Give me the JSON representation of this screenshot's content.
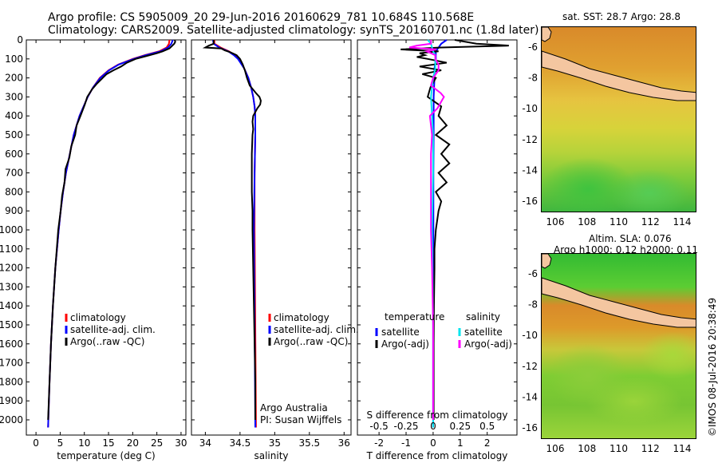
{
  "header": {
    "title_line1": "Argo profile: CS 5905009_20 29-Jun-2016 20160629_781 10.684S 110.568E",
    "title_line2": "Climatology: CARS2009. Satellite-adjusted climatology: synTS_20160701.nc (1.8d later)"
  },
  "depth_axis": {
    "ticks": [
      0,
      100,
      200,
      300,
      400,
      500,
      600,
      700,
      800,
      900,
      1000,
      1100,
      1200,
      1300,
      1400,
      1500,
      1600,
      1700,
      1800,
      1900,
      2000
    ]
  },
  "colors": {
    "climatology": "#ff0000",
    "satellite": "#0000ff",
    "argo": "#000000",
    "salinity_satellite": "#00e5ee",
    "salinity_argo": "#ff00ff"
  },
  "chart_data": [
    {
      "type": "line",
      "title": "Temperature profile",
      "xlabel": "temperature (deg C)",
      "ylabel": "depth",
      "xlim": [
        -2,
        31
      ],
      "ylim": [
        2080,
        0
      ],
      "xticks": [
        0,
        5,
        10,
        15,
        20,
        25,
        30
      ],
      "legend": [
        "climatology",
        "satellite-adj. clim.",
        "Argo(..raw -QC)"
      ],
      "series": [
        {
          "name": "climatology",
          "depth": [
            0,
            20,
            40,
            60,
            80,
            100,
            130,
            160,
            200,
            250,
            300,
            400,
            500,
            600,
            700,
            800,
            900,
            1000,
            1200,
            1400,
            1600,
            1800,
            2040
          ],
          "values": [
            27.6,
            27.5,
            27.0,
            25.5,
            22.5,
            20.0,
            17.0,
            15.0,
            13.2,
            11.8,
            10.7,
            9.0,
            7.8,
            7.0,
            6.2,
            5.6,
            5.1,
            4.7,
            4.0,
            3.5,
            3.1,
            2.8,
            2.5
          ]
        },
        {
          "name": "satellite-adj. clim.",
          "depth": [
            0,
            20,
            40,
            60,
            80,
            100,
            130,
            160,
            200,
            250,
            300,
            400,
            500,
            600,
            700,
            800,
            900,
            1000,
            1200,
            1400,
            1600,
            1800,
            2040
          ],
          "values": [
            28.3,
            28.0,
            27.3,
            25.8,
            22.7,
            20.2,
            17.1,
            15.1,
            13.3,
            11.8,
            10.7,
            9.0,
            7.8,
            7.0,
            6.2,
            5.6,
            5.1,
            4.7,
            4.0,
            3.5,
            3.1,
            2.8,
            2.5
          ]
        },
        {
          "name": "Argo(..raw -QC)",
          "depth": [
            0,
            10,
            20,
            30,
            45,
            60,
            70,
            85,
            100,
            120,
            140,
            160,
            180,
            200,
            230,
            260,
            300,
            340,
            400,
            450,
            500,
            560,
            620,
            680,
            750,
            820,
            900,
            1000,
            1200,
            1400,
            1600,
            1800,
            2000
          ],
          "values": [
            28.7,
            28.8,
            28.6,
            28.2,
            27.6,
            26.2,
            25.0,
            22.8,
            20.6,
            18.8,
            17.6,
            16.0,
            14.6,
            13.8,
            12.6,
            11.6,
            10.6,
            10.1,
            9.2,
            8.4,
            8.1,
            7.3,
            6.9,
            6.1,
            5.9,
            5.4,
            5.1,
            4.6,
            4.0,
            3.5,
            3.1,
            2.8,
            2.5
          ]
        }
      ]
    },
    {
      "type": "line",
      "title": "Salinity profile",
      "xlabel": "salinity",
      "ylabel": "depth",
      "xlim": [
        33.8,
        36.1
      ],
      "ylim": [
        2080,
        0
      ],
      "xticks": [
        34,
        34.5,
        35,
        35.5,
        36
      ],
      "legend": [
        "climatology",
        "satellite-adj. clim.",
        "Argo(..raw -QC)"
      ],
      "annotation": [
        "Argo Australia",
        "PI: Susan Wijffels"
      ],
      "series": [
        {
          "name": "climatology",
          "depth": [
            0,
            20,
            40,
            60,
            80,
            100,
            150,
            200,
            250,
            300,
            350,
            400,
            500,
            700,
            1000,
            1500,
            2040
          ],
          "values": [
            34.13,
            34.13,
            34.22,
            34.34,
            34.42,
            34.48,
            34.56,
            34.62,
            34.66,
            34.69,
            34.71,
            34.72,
            34.72,
            34.71,
            34.71,
            34.72,
            34.73
          ]
        },
        {
          "name": "satellite-adj. clim.",
          "depth": [
            0,
            20,
            40,
            60,
            80,
            100,
            150,
            200,
            250,
            300,
            350,
            400,
            500,
            700,
            1000,
            1500,
            2040
          ],
          "values": [
            34.11,
            34.12,
            34.2,
            34.33,
            34.41,
            34.47,
            34.56,
            34.62,
            34.66,
            34.69,
            34.71,
            34.72,
            34.72,
            34.71,
            34.7,
            34.71,
            34.72
          ]
        },
        {
          "name": "Argo(..raw -QC)",
          "depth": [
            0,
            20,
            30,
            40,
            45,
            55,
            65,
            80,
            100,
            130,
            160,
            200,
            240,
            280,
            300,
            320,
            340,
            360,
            380,
            400,
            430,
            470,
            500,
            600,
            700,
            800,
            900,
            1000,
            1200,
            1400,
            1600,
            1800,
            2000
          ],
          "values": [
            34.12,
            34.12,
            34.05,
            34.0,
            34.23,
            34.28,
            34.36,
            34.45,
            34.5,
            34.54,
            34.57,
            34.6,
            34.64,
            34.73,
            34.78,
            34.8,
            34.79,
            34.75,
            34.72,
            34.69,
            34.68,
            34.69,
            34.68,
            34.67,
            34.67,
            34.67,
            34.68,
            34.68,
            34.69,
            34.7,
            34.71,
            34.72,
            34.72
          ]
        }
      ]
    },
    {
      "type": "line",
      "title": "Differences from climatology",
      "xlabel": "T difference from climatology",
      "xlabel_top": "S difference from climatology",
      "ylabel": "depth",
      "xlim": [
        -2.8,
        3.1
      ],
      "ylim": [
        2080,
        0
      ],
      "xticks": [
        -2,
        -1,
        0,
        1,
        2
      ],
      "s_ticks_label": "-0.5  -0.25   0   0.25  0.5",
      "s_ticks": [
        -0.5,
        -0.25,
        0,
        0.25,
        0.5
      ],
      "legend": {
        "temperature": [
          "satellite",
          "Argo(-adj)"
        ],
        "salinity": [
          "satellite",
          "Argo(-adj)"
        ]
      },
      "series": [
        {
          "name": "temperature satellite",
          "depth": [
            0,
            20,
            40,
            60,
            80,
            100,
            150,
            200,
            300,
            400,
            500,
            700,
            1000,
            1500,
            2040
          ],
          "values": [
            0.5,
            0.3,
            0.2,
            0.1,
            0.1,
            0.1,
            0.05,
            0.05,
            0.02,
            0.02,
            0.02,
            0.01,
            0.01,
            0.0,
            0.0
          ]
        },
        {
          "name": "temperature Argo(-adj)",
          "depth": [
            0,
            10,
            20,
            30,
            40,
            50,
            60,
            70,
            80,
            90,
            100,
            120,
            140,
            160,
            180,
            200,
            250,
            300,
            350,
            400,
            450,
            500,
            550,
            600,
            650,
            700,
            750,
            800,
            850,
            900,
            950,
            1000,
            1100,
            1200,
            1400,
            1600,
            1800,
            2000
          ],
          "values": [
            0.8,
            1.2,
            1.6,
            2.8,
            0.3,
            -1.2,
            0.2,
            -0.5,
            -0.3,
            -0.6,
            -0.2,
            0.5,
            -0.5,
            0.3,
            -0.4,
            0.1,
            -0.1,
            -0.2,
            0.3,
            0.2,
            0.5,
            0.1,
            0.6,
            0.3,
            0.6,
            0.2,
            0.5,
            0.1,
            0.3,
            0.2,
            0.15,
            0.1,
            0.05,
            0.05,
            0.03,
            0.02,
            0.02,
            0.02
          ]
        },
        {
          "name": "salinity satellite",
          "depth": [
            0,
            20,
            40,
            60,
            80,
            100,
            150,
            200,
            300,
            400,
            500,
            700,
            1000,
            1500,
            2040
          ],
          "values": [
            -0.05,
            -0.02,
            -0.01,
            0.0,
            0.02,
            0.02,
            0.02,
            0.0,
            -0.02,
            -0.01,
            0.0,
            0.0,
            -0.01,
            0.0,
            0.0
          ]
        },
        {
          "name": "salinity Argo(-adj)",
          "depth": [
            0,
            20,
            30,
            40,
            50,
            60,
            80,
            100,
            130,
            160,
            200,
            240,
            280,
            300,
            320,
            360,
            400,
            450,
            500,
            600,
            700,
            800,
            1000,
            1200,
            1500,
            1800,
            2000
          ],
          "values": [
            -0.02,
            -0.02,
            -0.15,
            -0.22,
            0.03,
            -0.06,
            0.02,
            0.02,
            0.05,
            0.05,
            0.0,
            -0.02,
            0.07,
            0.1,
            0.08,
            0.04,
            -0.03,
            -0.02,
            -0.01,
            -0.02,
            -0.02,
            -0.02,
            -0.02,
            -0.01,
            0.0,
            0.0,
            0.0
          ]
        }
      ]
    }
  ],
  "maps": {
    "sst_label": "sat. SST: 28.7 Argo: 28.8",
    "sla_label": "Altim. SLA: 0.076",
    "h_label": "Argo h1000: 0.12 h2000: 0.11",
    "x_ticks": [
      "106",
      "108",
      "110",
      "112",
      "114"
    ],
    "y_ticks": [
      "-6",
      "-8",
      "-10",
      "-12",
      "-14",
      "-16"
    ],
    "float_position": {
      "lon": 110.568,
      "lat": -10.684
    }
  },
  "timestamp": "©IMOS 08-Jul-2016 20:38:49"
}
